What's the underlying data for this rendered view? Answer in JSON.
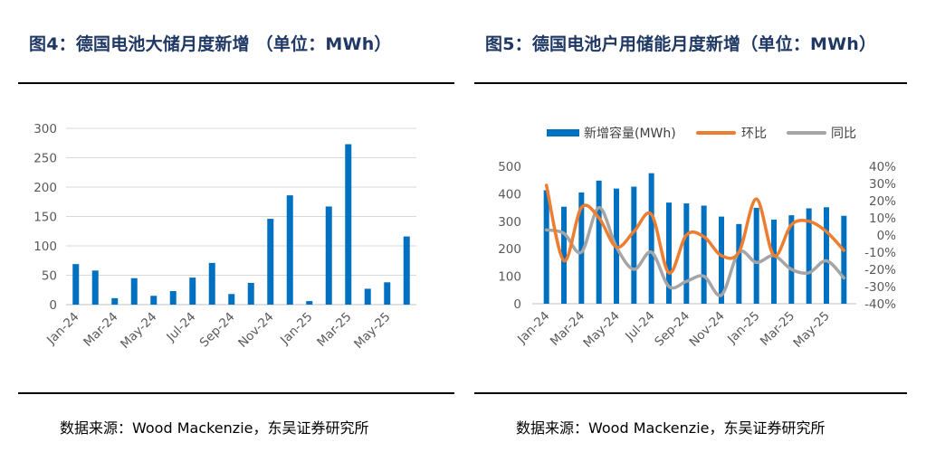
{
  "left": {
    "title": "图4：德国电池大储月度新增  （单位：MWh）",
    "source": "数据来源：Wood Mackenzie，东吴证券研究所",
    "colors": {
      "bar": "#0070c0",
      "grid": "#d9d9d9",
      "axis": "#bfbfbf",
      "text": "#595959"
    }
  },
  "right": {
    "title": "图5：德国电池户用储能月度新增（单位：MWh）",
    "source": "数据来源：Wood Mackenzie，东吴证券研究所",
    "colors": {
      "bar": "#0070c0",
      "mom": "#ed7d31",
      "yoy": "#a5a5a5",
      "axis": "#bfbfbf",
      "text": "#595959"
    },
    "legend": {
      "bar": "新增容量(MWh)",
      "mom": "环比",
      "yoy": "同比"
    }
  },
  "chart_data": [
    {
      "type": "bar",
      "categories": [
        "Jan-24",
        "Feb-24",
        "Mar-24",
        "Apr-24",
        "May-24",
        "Jun-24",
        "Jul-24",
        "Aug-24",
        "Sep-24",
        "Oct-24",
        "Nov-24",
        "Dec-24",
        "Jan-25",
        "Feb-25",
        "Mar-25",
        "Apr-25",
        "May-25",
        "Jun-25"
      ],
      "tick_labels": [
        "Jan-24",
        "Mar-24",
        "May-24",
        "Jul-24",
        "Sep-24",
        "Nov-24",
        "Jan-25",
        "Mar-25",
        "May-25"
      ],
      "values": [
        69,
        58,
        11,
        45,
        15,
        23,
        46,
        71,
        18,
        37,
        146,
        186,
        6,
        167,
        273,
        27,
        38,
        116
      ],
      "ylim": [
        0,
        300
      ],
      "yticks": [
        0,
        50,
        100,
        150,
        200,
        250,
        300
      ],
      "grid": true,
      "legend": "none"
    },
    {
      "type": "bar",
      "categories": [
        "Jan-24",
        "Feb-24",
        "Mar-24",
        "Apr-24",
        "May-24",
        "Jun-24",
        "Jul-24",
        "Aug-24",
        "Sep-24",
        "Oct-24",
        "Nov-24",
        "Dec-24",
        "Jan-25",
        "Feb-25",
        "Mar-25",
        "Apr-25",
        "May-25",
        "Jun-25"
      ],
      "tick_labels": [
        "Jan-24",
        "Mar-24",
        "May-24",
        "Jul-24",
        "Sep-24",
        "Nov-24",
        "Jan-25",
        "Mar-25",
        "May-25"
      ],
      "series": [
        {
          "name": "新增容量(MWh)",
          "type": "bar",
          "axis": "left",
          "values": [
            413,
            353,
            405,
            448,
            419,
            426,
            475,
            368,
            365,
            357,
            317,
            290,
            349,
            306,
            322,
            347,
            351,
            320
          ]
        },
        {
          "name": "环比",
          "type": "line",
          "axis": "right",
          "values": [
            29,
            -15,
            16,
            10,
            -7,
            2,
            12,
            -22,
            0,
            -1,
            -12,
            -10,
            21,
            -12,
            6,
            8,
            2,
            -9
          ]
        },
        {
          "name": "同比",
          "type": "line",
          "axis": "right",
          "values": [
            3,
            1,
            -10,
            16,
            -7,
            -20,
            -10,
            -30,
            -27,
            -24,
            -35,
            -10,
            -16,
            -12,
            -20,
            -22,
            -15,
            -25
          ]
        }
      ],
      "ylim": [
        0,
        500
      ],
      "yticks": [
        0,
        100,
        200,
        300,
        400,
        500
      ],
      "y2lim": [
        -40,
        40
      ],
      "y2ticks": [
        "40%",
        "30%",
        "20%",
        "10%",
        "0%",
        "-10%",
        "-20%",
        "-30%",
        "-40%"
      ],
      "grid": false,
      "legend": "top"
    }
  ]
}
